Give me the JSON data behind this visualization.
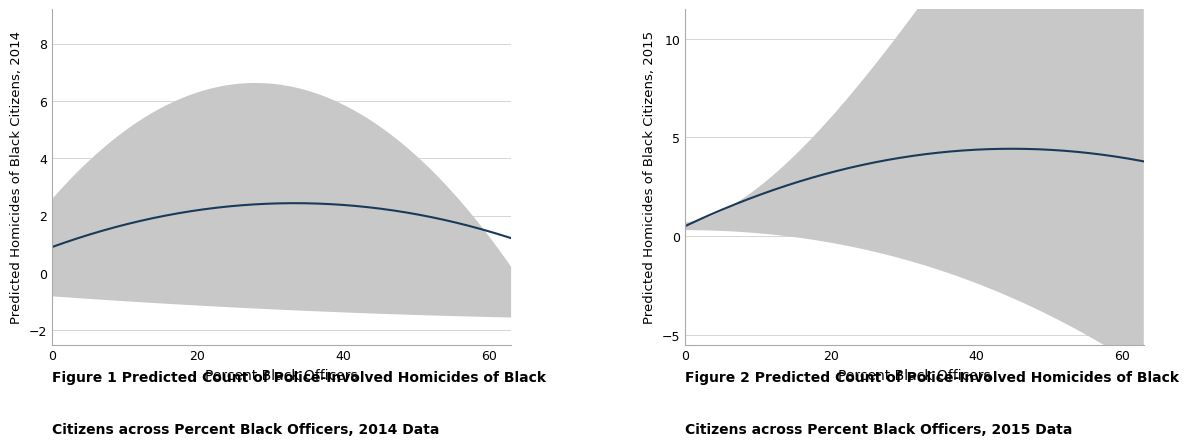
{
  "fig1": {
    "ylabel": "Predicted Homicides of Black Citizens, 2014",
    "xlabel": "Percent Black Officers",
    "caption_line1": "Figure 1 Predicted Count of Police-Involved Homicides of Black",
    "caption_line2": "Citizens across Percent Black Officers, 2014 Data",
    "xlim": [
      0,
      63
    ],
    "ylim": [
      -2.5,
      9.2
    ],
    "yticks": [
      -2,
      0,
      2,
      4,
      6,
      8
    ],
    "xticks": [
      0,
      20,
      40,
      60
    ],
    "line_color": "#1a3a5c",
    "ci_color": "#c8c8c8",
    "bg_color": "#ffffff",
    "grid_color": "#d5d5d5"
  },
  "fig2": {
    "ylabel": "Predicted Homicides of Black Citizens, 2015",
    "xlabel": "Percent Black Officers",
    "caption_line1": "Figure 2 Predicted Count of Police-Involved Homicides of Black",
    "caption_line2": "Citizens across Percent Black Officers, 2015 Data",
    "xlim": [
      0,
      63
    ],
    "ylim": [
      -5.5,
      11.5
    ],
    "yticks": [
      -5,
      0,
      5,
      10
    ],
    "xticks": [
      0,
      20,
      40,
      60
    ],
    "line_color": "#1a3a5c",
    "ci_color": "#c8c8c8",
    "bg_color": "#ffffff",
    "grid_color": "#d5d5d5"
  }
}
